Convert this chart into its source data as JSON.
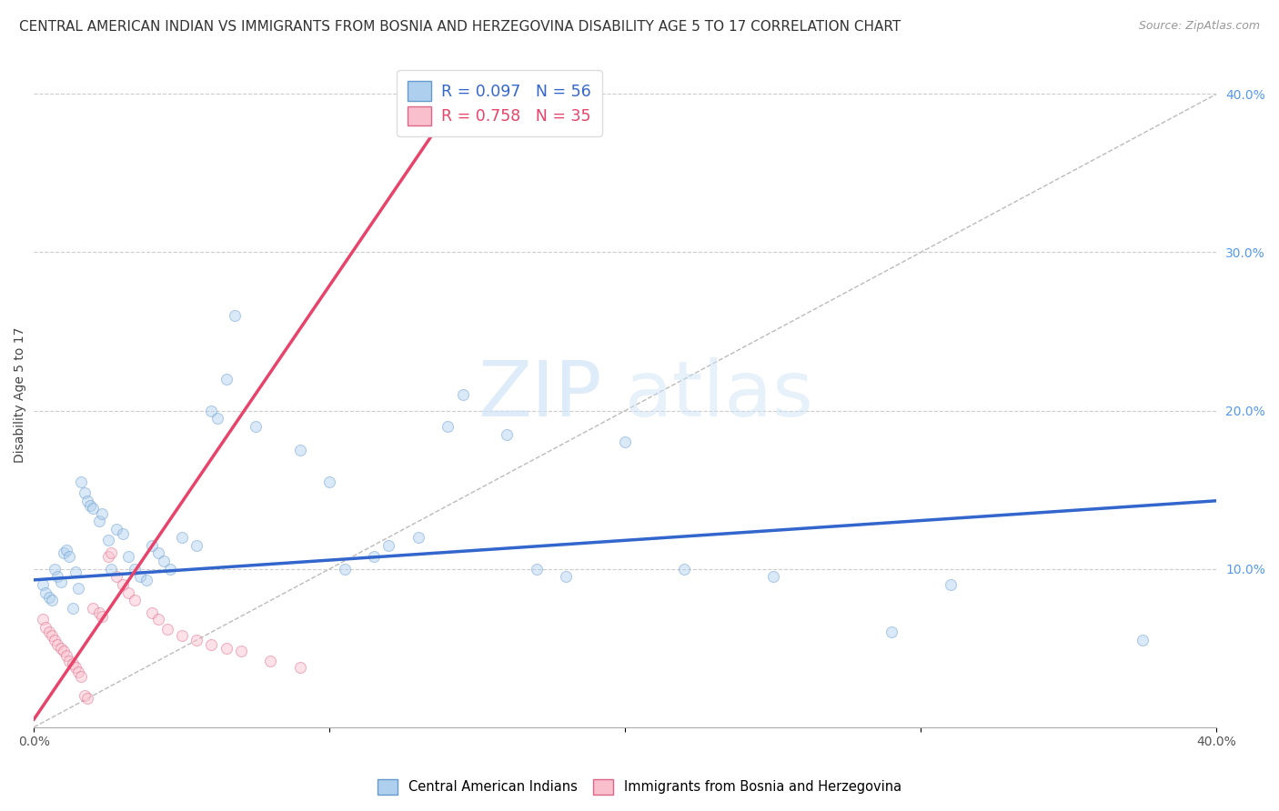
{
  "title": "CENTRAL AMERICAN INDIAN VS IMMIGRANTS FROM BOSNIA AND HERZEGOVINA DISABILITY AGE 5 TO 17 CORRELATION CHART",
  "source": "Source: ZipAtlas.com",
  "ylabel": "Disability Age 5 to 17",
  "xlim": [
    0.0,
    0.4
  ],
  "ylim": [
    0.0,
    0.42
  ],
  "x_ticks": [
    0.0,
    0.1,
    0.2,
    0.3,
    0.4
  ],
  "x_tick_labels": [
    "0.0%",
    "",
    "",
    "",
    "40.0%"
  ],
  "y_ticks_right": [
    0.1,
    0.2,
    0.3,
    0.4
  ],
  "y_tick_labels_right": [
    "10.0%",
    "20.0%",
    "30.0%",
    "40.0%"
  ],
  "blue_color": "#AED0EE",
  "pink_color": "#F9BFCC",
  "blue_edge_color": "#6699CC",
  "pink_edge_color": "#DD6688",
  "blue_line_color": "#3366CC",
  "pink_line_color": "#E8436A",
  "blue_scatter": [
    [
      0.003,
      0.09
    ],
    [
      0.004,
      0.085
    ],
    [
      0.005,
      0.082
    ],
    [
      0.006,
      0.08
    ],
    [
      0.007,
      0.1
    ],
    [
      0.008,
      0.095
    ],
    [
      0.009,
      0.092
    ],
    [
      0.01,
      0.11
    ],
    [
      0.011,
      0.112
    ],
    [
      0.012,
      0.108
    ],
    [
      0.013,
      0.075
    ],
    [
      0.014,
      0.098
    ],
    [
      0.015,
      0.088
    ],
    [
      0.016,
      0.155
    ],
    [
      0.017,
      0.148
    ],
    [
      0.018,
      0.143
    ],
    [
      0.019,
      0.14
    ],
    [
      0.02,
      0.138
    ],
    [
      0.022,
      0.13
    ],
    [
      0.023,
      0.135
    ],
    [
      0.025,
      0.118
    ],
    [
      0.026,
      0.1
    ],
    [
      0.028,
      0.125
    ],
    [
      0.03,
      0.122
    ],
    [
      0.032,
      0.108
    ],
    [
      0.034,
      0.1
    ],
    [
      0.036,
      0.095
    ],
    [
      0.038,
      0.093
    ],
    [
      0.04,
      0.115
    ],
    [
      0.042,
      0.11
    ],
    [
      0.044,
      0.105
    ],
    [
      0.046,
      0.1
    ],
    [
      0.05,
      0.12
    ],
    [
      0.055,
      0.115
    ],
    [
      0.06,
      0.2
    ],
    [
      0.062,
      0.195
    ],
    [
      0.065,
      0.22
    ],
    [
      0.068,
      0.26
    ],
    [
      0.075,
      0.19
    ],
    [
      0.09,
      0.175
    ],
    [
      0.1,
      0.155
    ],
    [
      0.105,
      0.1
    ],
    [
      0.115,
      0.108
    ],
    [
      0.12,
      0.115
    ],
    [
      0.13,
      0.12
    ],
    [
      0.14,
      0.19
    ],
    [
      0.145,
      0.21
    ],
    [
      0.16,
      0.185
    ],
    [
      0.17,
      0.1
    ],
    [
      0.18,
      0.095
    ],
    [
      0.2,
      0.18
    ],
    [
      0.22,
      0.1
    ],
    [
      0.25,
      0.095
    ],
    [
      0.29,
      0.06
    ],
    [
      0.31,
      0.09
    ],
    [
      0.375,
      0.055
    ]
  ],
  "pink_scatter": [
    [
      0.003,
      0.068
    ],
    [
      0.004,
      0.063
    ],
    [
      0.005,
      0.06
    ],
    [
      0.006,
      0.058
    ],
    [
      0.007,
      0.055
    ],
    [
      0.008,
      0.052
    ],
    [
      0.009,
      0.05
    ],
    [
      0.01,
      0.048
    ],
    [
      0.011,
      0.045
    ],
    [
      0.012,
      0.042
    ],
    [
      0.013,
      0.04
    ],
    [
      0.014,
      0.038
    ],
    [
      0.015,
      0.035
    ],
    [
      0.016,
      0.032
    ],
    [
      0.017,
      0.02
    ],
    [
      0.018,
      0.018
    ],
    [
      0.02,
      0.075
    ],
    [
      0.022,
      0.072
    ],
    [
      0.023,
      0.07
    ],
    [
      0.025,
      0.108
    ],
    [
      0.026,
      0.11
    ],
    [
      0.028,
      0.095
    ],
    [
      0.03,
      0.09
    ],
    [
      0.032,
      0.085
    ],
    [
      0.034,
      0.08
    ],
    [
      0.04,
      0.072
    ],
    [
      0.042,
      0.068
    ],
    [
      0.045,
      0.062
    ],
    [
      0.05,
      0.058
    ],
    [
      0.055,
      0.055
    ],
    [
      0.06,
      0.052
    ],
    [
      0.065,
      0.05
    ],
    [
      0.07,
      0.048
    ],
    [
      0.08,
      0.042
    ],
    [
      0.09,
      0.038
    ]
  ],
  "blue_line_x": [
    0.0,
    0.4
  ],
  "blue_line_y": [
    0.093,
    0.143
  ],
  "pink_line_x": [
    0.0,
    0.135
  ],
  "pink_line_y": [
    0.005,
    0.375
  ],
  "diag_line_x": [
    0.0,
    0.4
  ],
  "diag_line_y": [
    0.0,
    0.4
  ],
  "watermark_zip": "ZIP",
  "watermark_atlas": "atlas",
  "legend_blue_label": "R = 0.097   N = 56",
  "legend_pink_label": "R = 0.758   N = 35",
  "legend_blue_text_color": "#3366CC",
  "legend_pink_text_color": "#E8436A",
  "grid_color": "#CCCCCC",
  "background_color": "#FFFFFF",
  "title_fontsize": 11,
  "axis_label_fontsize": 10,
  "tick_fontsize": 10,
  "marker_size": 75,
  "marker_alpha": 0.45
}
